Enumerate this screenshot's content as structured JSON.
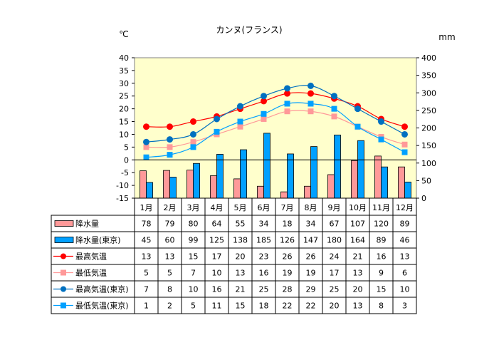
{
  "chart_data": {
    "type": "bar+line",
    "title": "カンヌ(フランス)",
    "y_left_unit": "℃",
    "y_right_unit": "mm",
    "y_left_range": [
      -15,
      40
    ],
    "y_left_step": 5,
    "y_right_range": [
      0,
      400
    ],
    "y_right_step": 50,
    "plot_background": "#ffffcc",
    "grid": false,
    "categories": [
      "1月",
      "2月",
      "3月",
      "4月",
      "5月",
      "6月",
      "7月",
      "8月",
      "9月",
      "10月",
      "11月",
      "12月"
    ],
    "series": [
      {
        "name": "降水量",
        "kind": "bar",
        "axis": "right",
        "color": "#ff9999",
        "values": [
          78,
          79,
          80,
          64,
          55,
          34,
          18,
          34,
          67,
          107,
          120,
          89
        ]
      },
      {
        "name": "降水量(東京)",
        "kind": "bar",
        "axis": "right",
        "color": "#00a0ff",
        "values": [
          45,
          60,
          99,
          125,
          138,
          185,
          126,
          147,
          180,
          164,
          89,
          46
        ]
      },
      {
        "name": "最高気温",
        "kind": "line",
        "axis": "left",
        "color": "#ff0000",
        "marker": "circle",
        "values": [
          13,
          13,
          15,
          17,
          20,
          23,
          26,
          26,
          24,
          21,
          16,
          13
        ]
      },
      {
        "name": "最低気温",
        "kind": "line",
        "axis": "left",
        "color": "#ff9999",
        "marker": "square",
        "values": [
          5,
          5,
          7,
          10,
          13,
          16,
          19,
          19,
          17,
          13,
          9,
          6
        ]
      },
      {
        "name": "最高気温(東京)",
        "kind": "line",
        "axis": "left",
        "color": "#0070c0",
        "marker": "circle",
        "values": [
          7,
          8,
          10,
          16,
          21,
          25,
          28,
          29,
          25,
          20,
          15,
          10
        ]
      },
      {
        "name": "最低気温(東京)",
        "kind": "line",
        "axis": "left",
        "color": "#00a0ff",
        "marker": "square",
        "values": [
          1,
          2,
          5,
          11,
          15,
          18,
          22,
          22,
          20,
          13,
          8,
          3
        ]
      }
    ]
  }
}
